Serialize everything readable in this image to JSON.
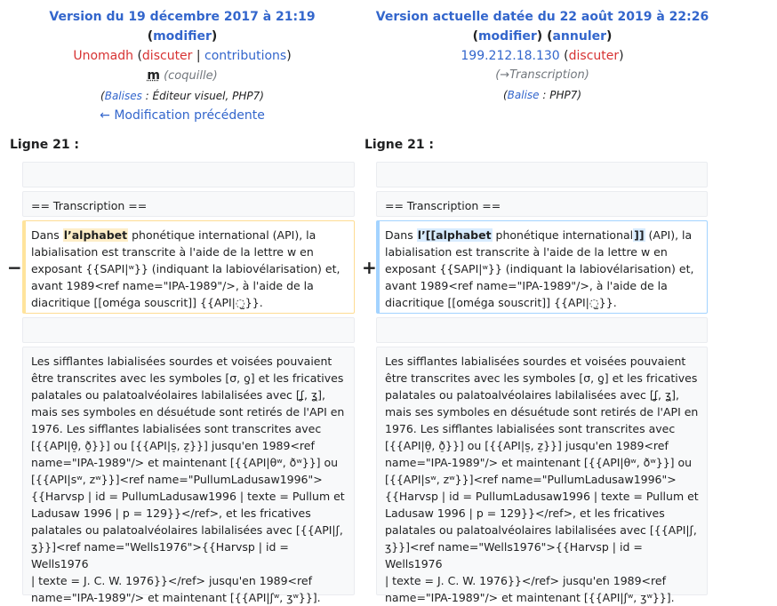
{
  "left_header": {
    "title": "Version du 19 décembre 2017 à 21:19",
    "edit_open": "(",
    "edit_label": "modifier",
    "edit_close": ")",
    "user": "Unomadh",
    "talk_open": " (",
    "talk_label": "discuter",
    "sep": " | ",
    "contrib_label": "contributions",
    "talk_close": ")",
    "minor_mark": "m",
    "summary": " (coquille)",
    "tags_open": "(",
    "tags_label": "Balises",
    "tags_rest": " : Éditeur visuel, PHP7)",
    "prev_link": "← Modification précédente"
  },
  "right_header": {
    "title": "Version actuelle datée du 22 août 2019 à 22:26",
    "edit_label": "modifier",
    "undo_label": "annuler",
    "user": "199.212.18.130",
    "talk_label": "discuter",
    "summary": "(→Transcription)",
    "tags_label": "Balise",
    "tags_rest": " : PHP7)"
  },
  "line_label_left": "Ligne 21 :",
  "line_label_right": "Ligne 21 :",
  "markers": {
    "minus": "−",
    "plus": "+"
  },
  "diff": {
    "heading": "== Transcription ==",
    "left_changed": {
      "pre": "Dans ",
      "hl": "l’alphabet",
      "post": " phonétique international (API), la labialisation est transcrite à l'aide de la lettre w en exposant {{SAPI|ʷ}} (indiquant la labiovélarisation) et, avant 1989<ref name=\"IPA-1989\"/>, à l'aide de la diacritique [[oméga souscrit]] {{API|◌̫}}."
    },
    "right_changed": {
      "pre": "Dans ",
      "hl1": "l’[[alphabet",
      "mid": " phonétique international",
      "hl2": "]]",
      "post": " (API), la labialisation est transcrite à l'aide de la lettre w en exposant {{SAPI|ʷ}} (indiquant la labiovélarisation) et, avant 1989<ref name=\"IPA-1989\"/>, à l'aide de la diacritique [[oméga souscrit]] {{API|◌̫}}."
    },
    "context_paragraph": [
      "Les sifflantes labialisées sourdes et voisées pouvaient",
      "être transcrites avec les symboles [σ, ƍ] et les fricatives",
      "palatales ou palatoalvéolaires labilalisées avec [ʆ, ʓ],",
      "mais ses symboles en désuétude sont retirés de l'API en",
      "1976. Les sifflantes labialisées sont transcrites avec",
      "[{{API|θ̠, ð̠}}] ou [{{API|s̠, z̠}}] jusqu'en 1989<ref",
      "name=\"IPA-1989\"/> et maintenant [{{API|θʷ, ðʷ}}] ou",
      "[{{API|sʷ, zʷ}}]<ref name=\"PullumLadusaw1996\">",
      "{{Harvsp | id = PullumLadusaw1996 | texte = Pullum et",
      "Ladusaw 1996 | p = 129}}</ref>, et les fricatives",
      "palatales ou palatoalvéolaires labilalisées avec [{{API|ʃ,",
      "ʒ}}]<ref name=\"Wells1976\">{{Harvsp | id = Wells1976",
      "| texte = J. C. W. 1976}}</ref> jusqu'en 1989<ref",
      "name=\"IPA-1989\"/> et maintenant [{{API|ʃʷ, ʒʷ}}]."
    ]
  }
}
